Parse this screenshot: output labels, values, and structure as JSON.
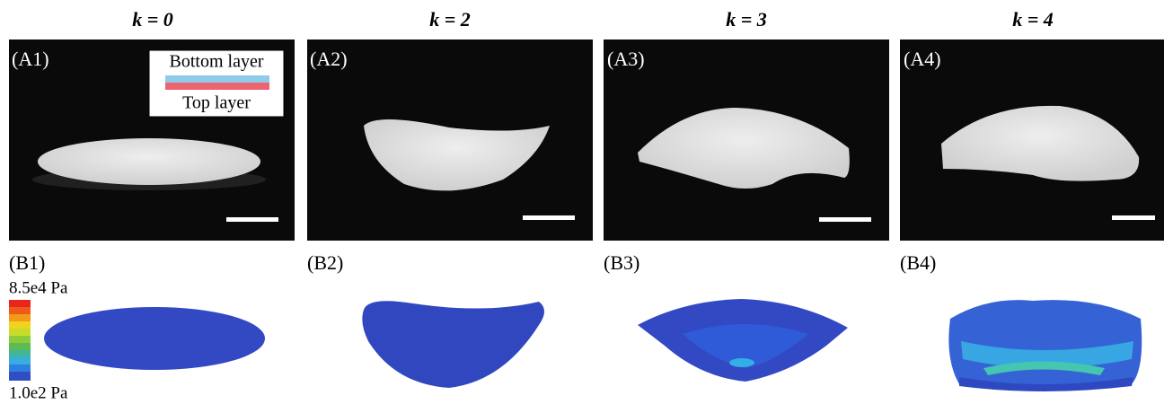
{
  "columns": [
    {
      "header": "k = 0",
      "photo_label": "(A1)",
      "sim_label": "(B1)"
    },
    {
      "header": "k = 2",
      "photo_label": "(A2)",
      "sim_label": "(B2)"
    },
    {
      "header": "k = 3",
      "photo_label": "(A3)",
      "sim_label": "(B3)"
    },
    {
      "header": "k = 4",
      "photo_label": "(A4)",
      "sim_label": "(B4)"
    }
  ],
  "legend": {
    "upper": "Bottom layer",
    "lower": "Top layer"
  },
  "colorbar": {
    "max": "8.5e4 Pa",
    "min": "1.0e2 Pa"
  }
}
